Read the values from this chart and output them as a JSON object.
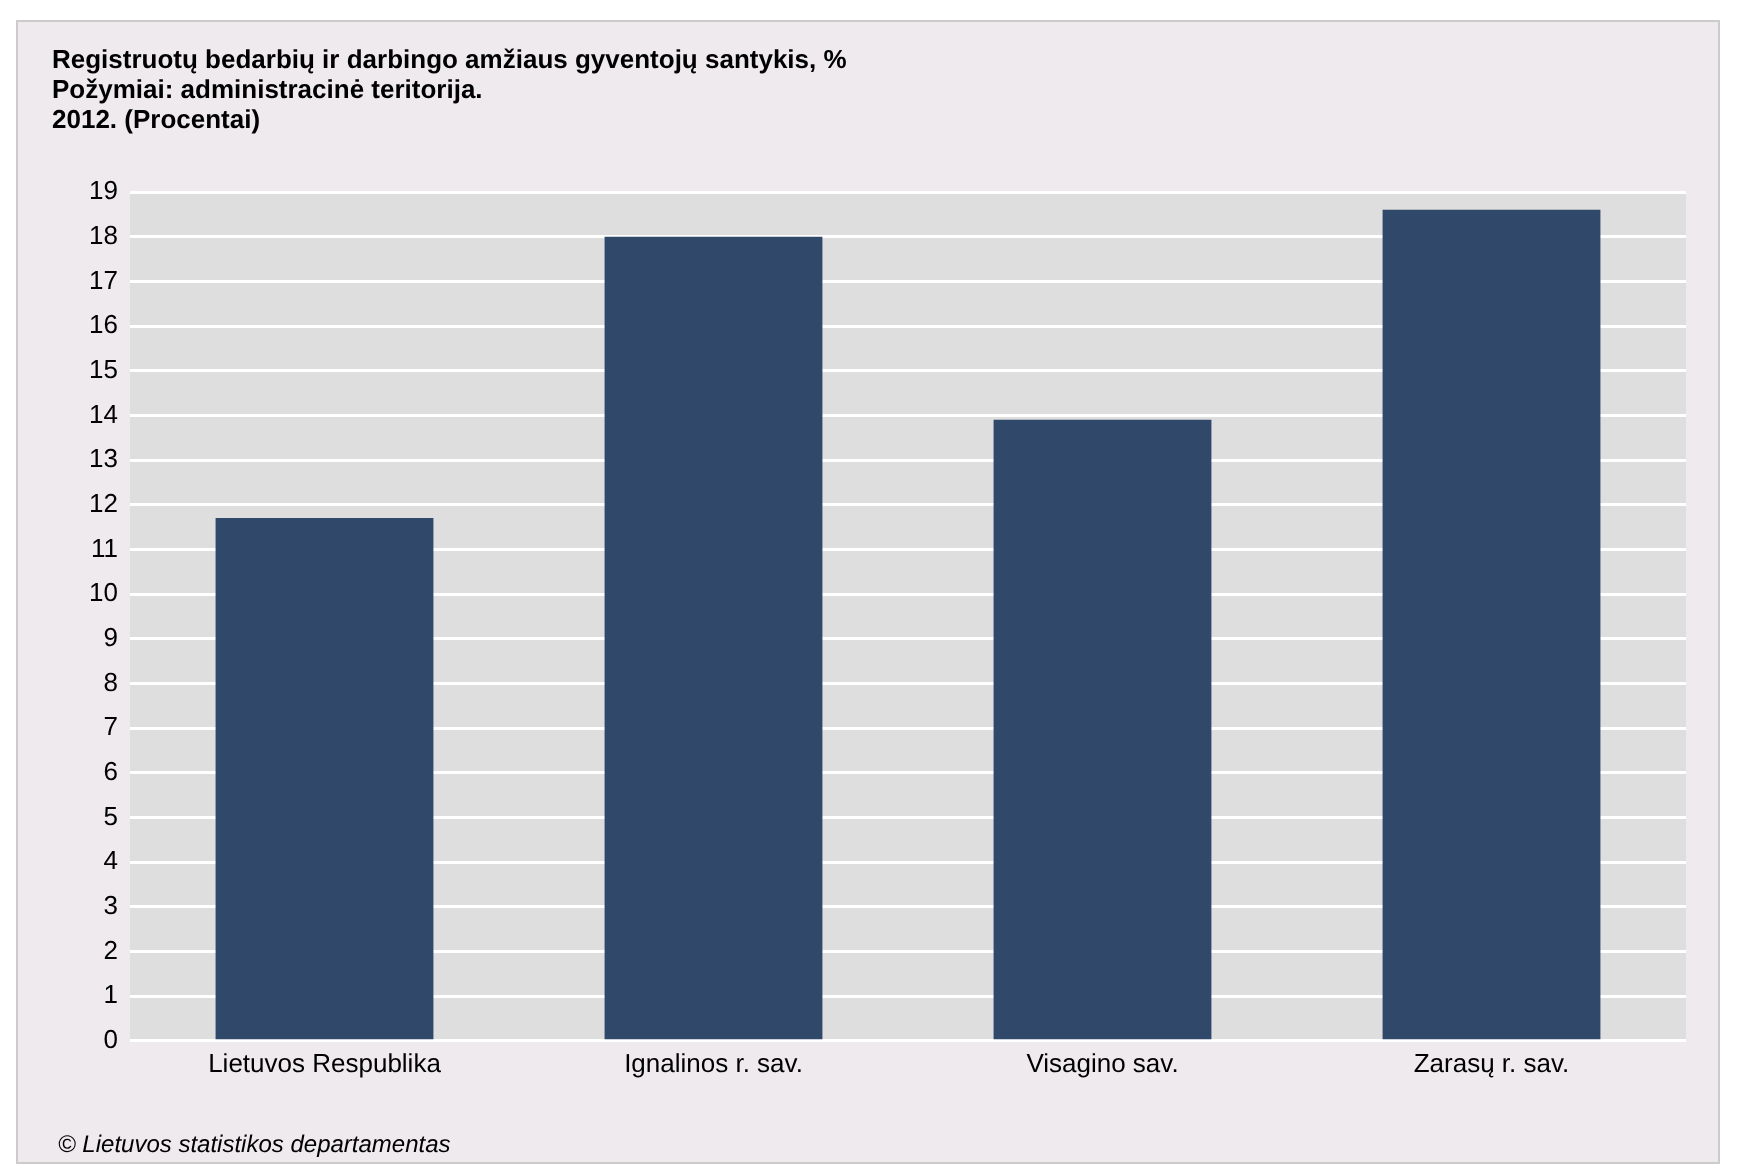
{
  "chart_data": {
    "type": "bar",
    "title": "Registruotų bedarbių ir darbingo amžiaus gyventojų santykis, %",
    "subtitle": "Požymiai: administracinė teritorija.\n2012. (Procentai)",
    "categories": [
      "Lietuvos Respublika",
      "Ignalinos r. sav.",
      "Visagino sav.",
      "Zarasų r. sav."
    ],
    "values": [
      11.7,
      18.0,
      13.9,
      18.6
    ],
    "color": "#30496a",
    "ylim": [
      0,
      19
    ],
    "yticks": [
      0,
      1,
      2,
      3,
      4,
      5,
      6,
      7,
      8,
      9,
      10,
      11,
      12,
      13,
      14,
      15,
      16,
      17,
      18,
      19
    ],
    "grid": "y",
    "annotations": [
      "© Lietuvos statistikos departamentas"
    ]
  }
}
